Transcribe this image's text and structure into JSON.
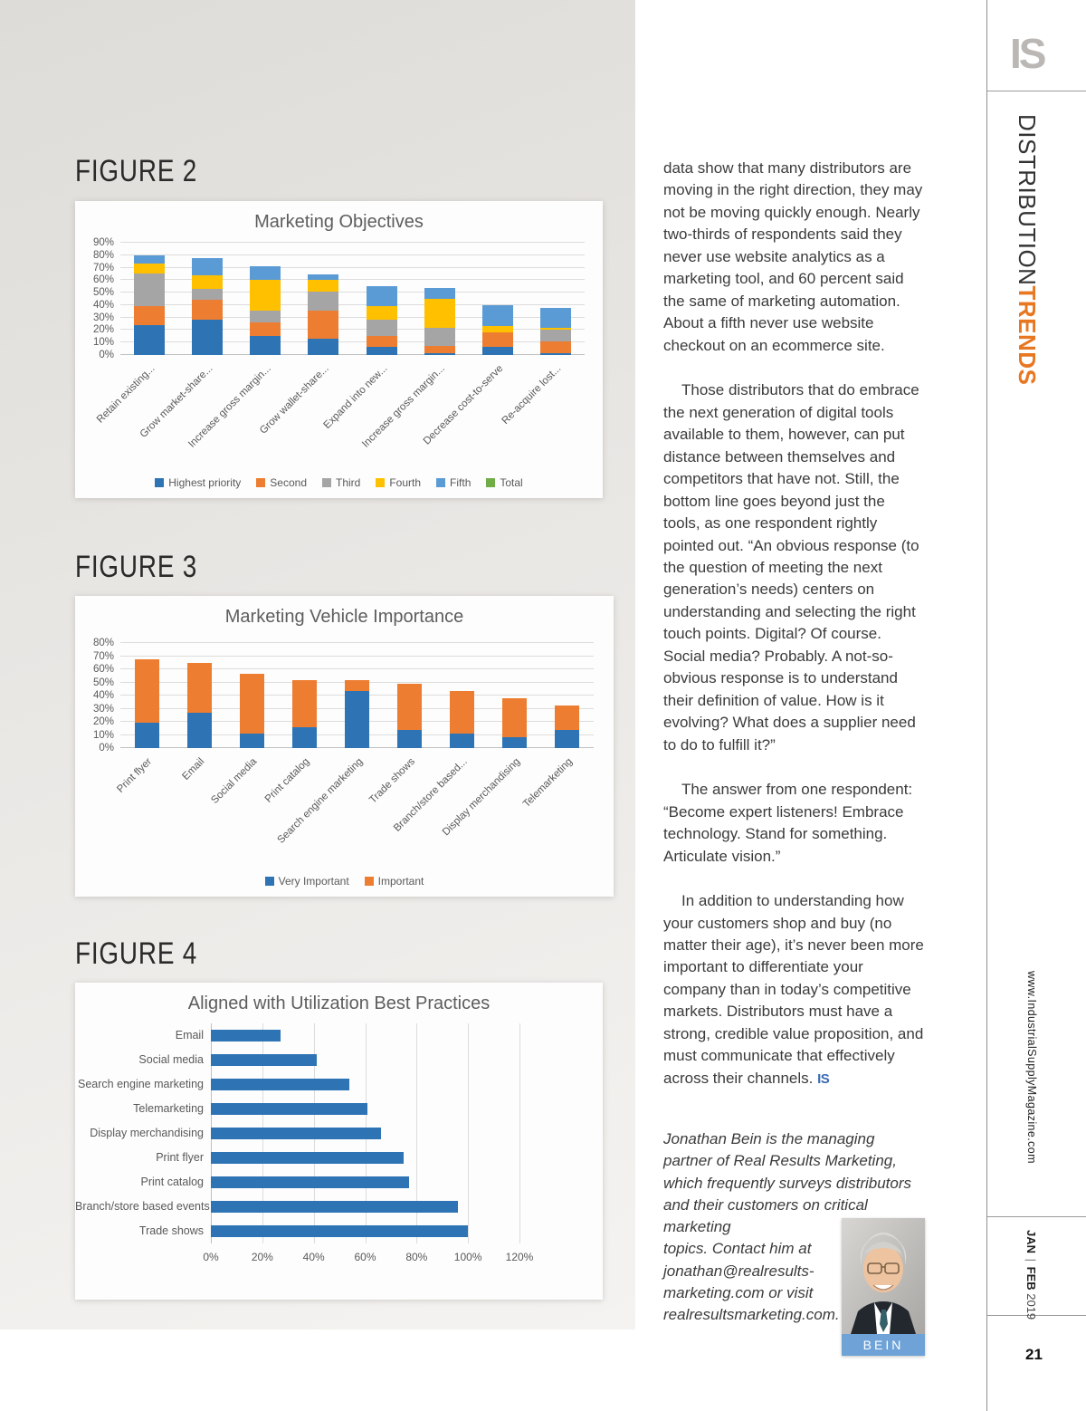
{
  "page": {
    "figure_labels": [
      "FIGURE 2",
      "FIGURE 3",
      "FIGURE 4"
    ],
    "page_number": "21"
  },
  "sidebar": {
    "logo": "IS",
    "section": {
      "thin": "DISTRIBUTION",
      "bold": "TRENDS"
    },
    "website": "www.IndustrialSupplyMagazine.com",
    "issue": {
      "month1": "JAN",
      "separator": "|",
      "month2": "FEB",
      "year": "2019"
    },
    "accent_color": "#E87722",
    "endmark_color": "#3B6AB0",
    "photo_caption_bg": "#6FA3D8"
  },
  "article": {
    "paragraphs": [
      "data show that many distributors are moving in the right direction, they may not be moving quickly enough. Nearly two-thirds of respondents said they never use website analytics as a marketing tool, and 60 percent said the same of marketing automation. About a fifth never use website checkout on an ecommerce site.",
      "Those distributors that do embrace the next generation of digital tools available to them, however, can put distance between themselves and competitors that have not. Still, the bottom line goes beyond just the tools, as one respondent rightly pointed out. “An obvious response (to the question of meeting the next generation’s needs) centers on understanding and selecting the right touch points. Digital? Of course. Social media? Probably. A not-so-obvious response is to understand their definition of value. How is it evolving? What does a supplier need to do to fulfill it?”",
      "The answer from one respondent: “Become expert listeners! Embrace technology. Stand for something. Articulate vision.”",
      "In addition to understanding how your customers shop and buy (no matter their age), it’s never been more important to differentiate your company than in today’s competitive markets. Distributors must have a strong, credible value proposition, and must communicate that effectively across their channels."
    ],
    "end_mark": "IS",
    "bio_part1": "Jonathan Bein is the managing partner of Real Results Marketing, which frequently surveys distributors and their customers on critical marketing",
    "bio_part2": "topics. Contact him at jonathan@realresults-marketing.com or visit realresultsmarketing.com.",
    "photo_caption": "BEIN"
  },
  "chart_data": [
    {
      "type": "bar",
      "variant": "column-stacked",
      "title": "Marketing Objectives",
      "categories": [
        "Retain existing...",
        "Grow market-share...",
        "Increase gross margin...",
        "Grow wallet-share...",
        "Expand into new...",
        "Increase gross margin...",
        "Decrease cost-to-serve",
        "Re-acquire lost..."
      ],
      "series": [
        {
          "name": "Highest priority",
          "color": "#2E74B5",
          "values": [
            24,
            28.5,
            15.5,
            13,
            6.5,
            1.5,
            6.5,
            1.5
          ]
        },
        {
          "name": "Second",
          "color": "#ED7D31",
          "values": [
            15,
            16,
            11,
            22.5,
            9,
            5.5,
            12,
            9.5
          ]
        },
        {
          "name": "Third",
          "color": "#A5A5A5",
          "values": [
            26,
            8.5,
            9,
            15.5,
            12.5,
            15,
            0,
            9
          ]
        },
        {
          "name": "Fourth",
          "color": "#FFC000",
          "values": [
            8,
            11,
            25,
            9,
            11.5,
            23,
            4.5,
            2
          ]
        },
        {
          "name": "Fifth",
          "color": "#5B9BD5",
          "values": [
            7,
            13.5,
            10.5,
            4.5,
            16,
            8.5,
            17,
            15.5
          ]
        },
        {
          "name": "Total",
          "color": "#70AD47",
          "values": [
            0,
            0,
            0,
            0,
            0,
            0,
            0,
            0
          ]
        }
      ],
      "ylim": [
        0,
        90
      ],
      "ytick_step": 10,
      "ytick_suffix": "%",
      "grid": true,
      "legend_position": "bottom"
    },
    {
      "type": "bar",
      "variant": "column-stacked",
      "title": "Marketing Vehicle Importance",
      "categories": [
        "Print flyer",
        "Email",
        "Social media",
        "Print catalog",
        "Search engine marketing",
        "Trade shows",
        "Branch/store based...",
        "Display merchandising",
        "Telemarketing"
      ],
      "series": [
        {
          "name": "Very Important",
          "color": "#2E74B5",
          "values": [
            19,
            27,
            11,
            16,
            43.5,
            13.5,
            11,
            8.5,
            13.5
          ]
        },
        {
          "name": "Important",
          "color": "#ED7D31",
          "values": [
            48.5,
            38,
            45.5,
            35.5,
            8,
            35.5,
            32.5,
            29.5,
            19
          ]
        }
      ],
      "ylim": [
        0,
        80
      ],
      "ytick_step": 10,
      "ytick_suffix": "%",
      "grid": true,
      "legend_position": "bottom"
    },
    {
      "type": "bar",
      "variant": "bar-horizontal",
      "title": "Aligned with Utilization Best Practices",
      "categories": [
        "Email",
        "Social media",
        "Search engine marketing",
        "Telemarketing",
        "Display merchandising",
        "Print flyer",
        "Print catalog",
        "Branch/store based events",
        "Trade shows"
      ],
      "values": [
        27,
        41,
        54,
        61,
        66,
        75,
        77,
        96,
        100
      ],
      "color": "#2E74B5",
      "xlim": [
        0,
        120
      ],
      "xtick_step": 20,
      "xtick_suffix": "%",
      "grid": true
    }
  ]
}
